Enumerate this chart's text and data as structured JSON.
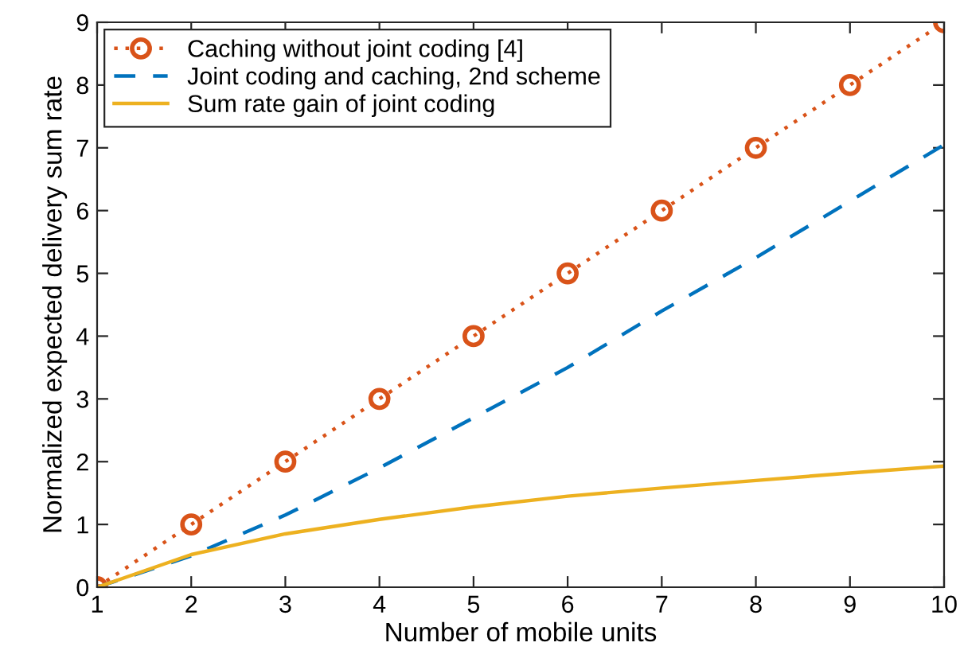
{
  "chart_data": {
    "type": "line",
    "xlabel": "Number of mobile units",
    "ylabel": "Normalized expected delivery sum rate",
    "x": [
      1,
      2,
      3,
      4,
      5,
      6,
      7,
      8,
      9,
      10
    ],
    "series": [
      {
        "name": "Caching without joint coding [4]",
        "color": "#d95319",
        "values": [
          0,
          1,
          2,
          3,
          4,
          5,
          6,
          7,
          8,
          9
        ],
        "marker": "circle",
        "line_style": "dotted"
      },
      {
        "name": "Joint coding and caching, 2nd scheme",
        "color": "#0072bd",
        "values": [
          0,
          0.5,
          1.15,
          1.9,
          2.7,
          3.5,
          4.4,
          5.25,
          6.15,
          7.05
        ],
        "marker": "none",
        "line_style": "dashed"
      },
      {
        "name": "Sum rate gain of joint coding",
        "color": "#edb120",
        "values": [
          0,
          0.52,
          0.85,
          1.08,
          1.28,
          1.45,
          1.58,
          1.7,
          1.82,
          1.93
        ],
        "marker": "none",
        "line_style": "solid"
      }
    ],
    "xlim": [
      1,
      10
    ],
    "ylim": [
      0,
      9
    ],
    "xticks": [
      1,
      2,
      3,
      4,
      5,
      6,
      7,
      8,
      9,
      10
    ],
    "yticks": [
      0,
      1,
      2,
      3,
      4,
      5,
      6,
      7,
      8,
      9
    ],
    "grid": false,
    "legend": "top left"
  }
}
